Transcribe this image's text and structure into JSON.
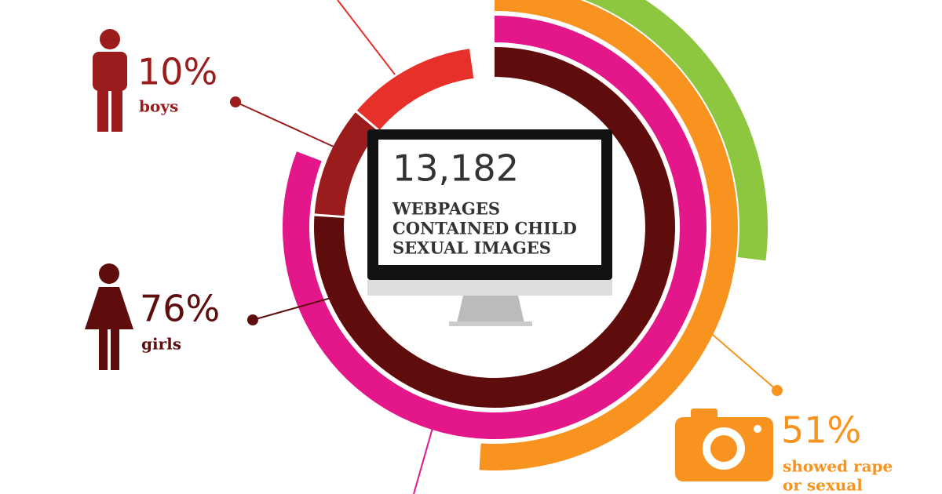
{
  "center": {
    "number": "13,182",
    "lines": [
      "WEBPAGES",
      "CONTAINED CHILD",
      "SEXUAL IMAGES"
    ]
  },
  "stats": [
    {
      "value": 10,
      "value_label": "10%",
      "lines": [
        "boys"
      ],
      "color": "#9b1c1c"
    },
    {
      "value": 76,
      "value_label": "76%",
      "lines": [
        "girls"
      ],
      "color": "#5e0c0c"
    },
    {
      "value": 51,
      "value_label": "51%",
      "lines": [
        "showed rape",
        "or sexual"
      ],
      "color": "#f7931e"
    }
  ]
}
